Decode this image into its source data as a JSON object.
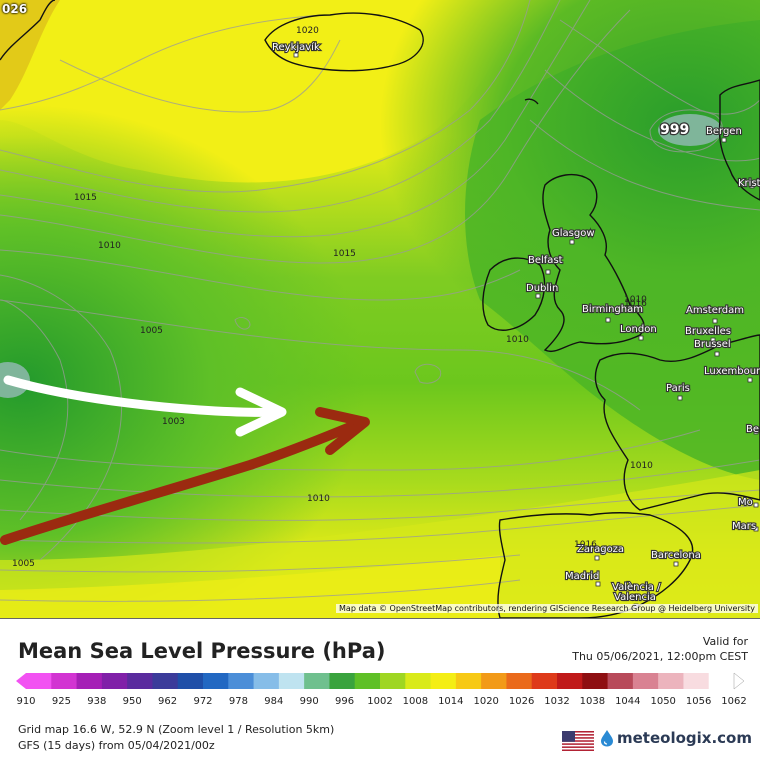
{
  "map": {
    "corner_label": "026",
    "extrema_label": "999",
    "attribution": "Map data © OpenStreetMap contributors, rendering GIScience Research Group @ Heidelberg University",
    "cities": [
      {
        "name": "Reykjavík"
      },
      {
        "name": "Bergen"
      },
      {
        "name": "Krist"
      },
      {
        "name": "Glasgow"
      },
      {
        "name": "Belfast"
      },
      {
        "name": "Dublin"
      },
      {
        "name": "Birmingham"
      },
      {
        "name": "London"
      },
      {
        "name": "Amsterdam"
      },
      {
        "name": "Bruxelles"
      },
      {
        "name": "Brussel"
      },
      {
        "name": "Luxembour"
      },
      {
        "name": "Paris"
      },
      {
        "name": "Be"
      },
      {
        "name": "Mo"
      },
      {
        "name": "Mars"
      },
      {
        "name": "Zaragoza"
      },
      {
        "name": "Barcelona"
      },
      {
        "name": "Madrid"
      },
      {
        "name": "València /"
      },
      {
        "name": "Valencia"
      }
    ],
    "isobar_labels": [
      "1020",
      "1015",
      "1010",
      "1015",
      "1005",
      "1003",
      "1010",
      "1010",
      "1010",
      "1010",
      "1005",
      "1016",
      "1016"
    ],
    "arrows": [
      {
        "name": "white",
        "color": "#ffffff"
      },
      {
        "name": "dark-red",
        "color": "#9b2a10"
      }
    ],
    "colors": {
      "high_yellow": "#f3ef16",
      "mid_yellow_green": "#c7e318",
      "green": "#6cc71d",
      "dark_green": "#2fa626",
      "land_outline": "#111111"
    }
  },
  "legend": {
    "title": "Mean Sea Level Pressure (hPa)",
    "valid_label": "Valid for",
    "valid_time": "Thu 05/06/2021, 12:00pm CEST",
    "ticks": [
      "910",
      "925",
      "938",
      "950",
      "962",
      "972",
      "978",
      "984",
      "990",
      "996",
      "1002",
      "1008",
      "1014",
      "1020",
      "1026",
      "1032",
      "1038",
      "1044",
      "1050",
      "1056",
      "1062"
    ],
    "colors": [
      "#f252f2",
      "#d234d2",
      "#a51fb6",
      "#8020a8",
      "#5a2b9e",
      "#3b3b9a",
      "#1f4fa8",
      "#2268c2",
      "#4b8ed8",
      "#86bde8",
      "#bfe3f0",
      "#6fc08e",
      "#3aa33e",
      "#5fc027",
      "#9fd622",
      "#d9ea19",
      "#f4ee15",
      "#f7c915",
      "#f29a18",
      "#ea6a1b",
      "#de3a1a",
      "#c01a1a",
      "#8e0f12",
      "#b84a5a",
      "#d98292",
      "#ecb4bd",
      "#f8dce0",
      "#ffffff"
    ]
  },
  "footer": {
    "grid_info": "Grid map 16.6 W, 52.9 N (Zoom level 1 / Resolution 5km)",
    "run_info": "GFS (15 days) from  05/04/2021/00z",
    "brand": "meteologix.com",
    "flag_icon": "us-flag-icon"
  }
}
